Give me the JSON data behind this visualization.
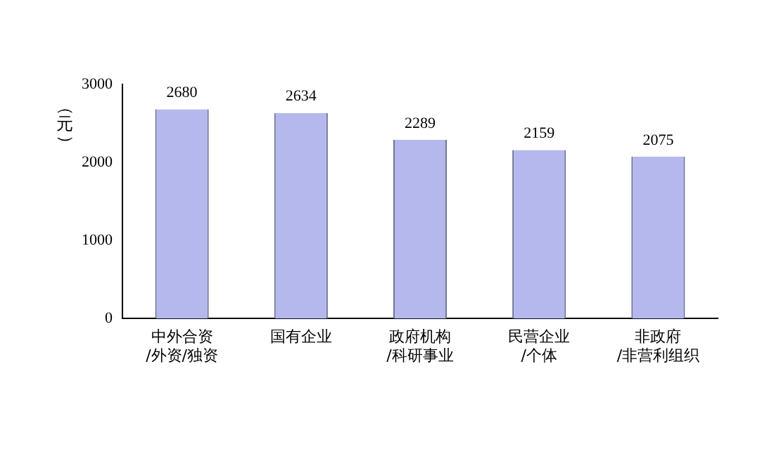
{
  "chart_data": {
    "type": "bar",
    "ylabel": "（元）",
    "categories": [
      "中外合资\n/外资/独资",
      "国有企业",
      "政府机构\n/科研事业",
      "民营企业\n/个体",
      "非政府\n/非营利组织"
    ],
    "values": [
      2680,
      2634,
      2289,
      2159,
      2075
    ],
    "color": "#b4b8ec",
    "ylim": [
      0,
      3000
    ],
    "yticks": [
      0,
      1000,
      2000,
      3000
    ],
    "grid": false,
    "data_labels": true
  }
}
